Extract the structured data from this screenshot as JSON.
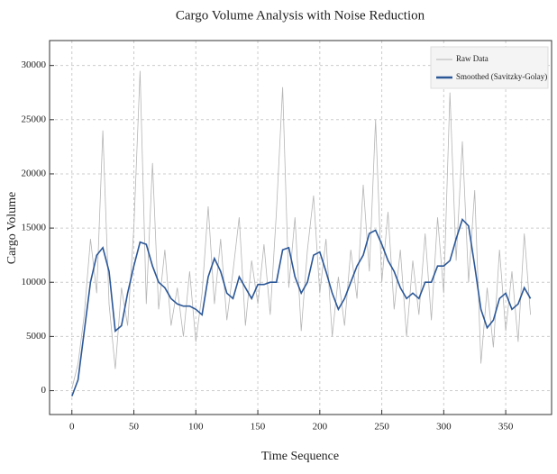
{
  "chart_data": {
    "type": "line",
    "title": "Cargo Volume Analysis with Noise Reduction",
    "x_label": "Time Sequence",
    "y_label": "Cargo Volume",
    "x": [
      0,
      5,
      10,
      15,
      20,
      25,
      30,
      35,
      40,
      45,
      50,
      55,
      60,
      65,
      70,
      75,
      80,
      85,
      90,
      95,
      100,
      105,
      110,
      115,
      120,
      125,
      130,
      135,
      140,
      145,
      150,
      155,
      160,
      165,
      170,
      175,
      180,
      185,
      190,
      195,
      200,
      205,
      210,
      215,
      220,
      225,
      230,
      235,
      240,
      245,
      250,
      255,
      260,
      265,
      270,
      275,
      280,
      285,
      290,
      295,
      300,
      305,
      310,
      315,
      320,
      325,
      330,
      335,
      340,
      345,
      350,
      355,
      360,
      365,
      370
    ],
    "series": [
      {
        "name": "Raw Data",
        "color": "#b5b5b5",
        "values": [
          200,
          2500,
          7000,
          14000,
          9000,
          24000,
          8000,
          2000,
          9500,
          6000,
          15000,
          29500,
          8000,
          21000,
          7500,
          13000,
          6000,
          9500,
          5000,
          11000,
          4500,
          9000,
          17000,
          8000,
          14000,
          6500,
          11000,
          16000,
          6000,
          12000,
          8000,
          13500,
          7000,
          16500,
          28000,
          9500,
          16000,
          5500,
          13000,
          18000,
          9000,
          14000,
          5000,
          10500,
          6000,
          13000,
          8500,
          19000,
          11000,
          25000,
          10000,
          16500,
          7500,
          13000,
          5000,
          12000,
          7000,
          14500,
          6500,
          16000,
          9000,
          27500,
          12000,
          23000,
          10000,
          18500,
          2500,
          9500,
          4000,
          13000,
          5500,
          11000,
          4500,
          14500,
          7000
        ]
      },
      {
        "name": "Smoothed (Savitzky-Golay)",
        "color": "#2b5797",
        "values": [
          -500,
          1000,
          5500,
          10000,
          12500,
          13200,
          11000,
          5500,
          6000,
          9000,
          11500,
          13700,
          13500,
          11500,
          10000,
          9500,
          8500,
          8000,
          7800,
          7800,
          7500,
          7000,
          10500,
          12200,
          11000,
          9000,
          8500,
          10500,
          9500,
          8500,
          9800,
          9800,
          10000,
          10000,
          13000,
          13200,
          10500,
          9000,
          10000,
          12500,
          12800,
          11000,
          9000,
          7500,
          8500,
          10000,
          11500,
          12500,
          14500,
          14800,
          13500,
          12000,
          11000,
          9500,
          8500,
          9000,
          8500,
          10000,
          10000,
          11500,
          11500,
          12000,
          14000,
          15800,
          15200,
          11500,
          7500,
          5800,
          6500,
          8500,
          9000,
          7500,
          8000,
          9500,
          8500
        ]
      }
    ],
    "xlim": [
      -18,
      387
    ],
    "ylim": [
      -2200,
      32300
    ],
    "xticks": [
      0,
      50,
      100,
      150,
      200,
      250,
      300,
      350
    ],
    "yticks": [
      0,
      5000,
      10000,
      15000,
      20000,
      25000,
      30000
    ],
    "grid": true,
    "legend": "upper right"
  }
}
